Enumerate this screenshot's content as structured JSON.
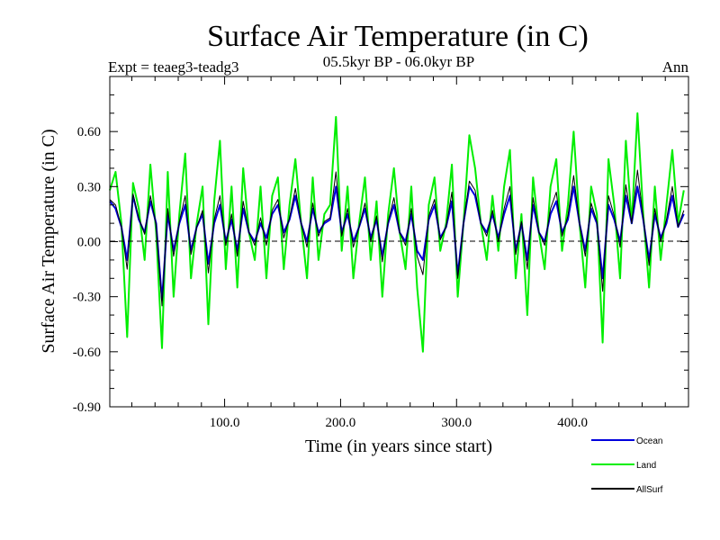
{
  "chart_data": {
    "type": "line",
    "title": "Surface Air Temperature (in C)",
    "subtitle": "05.5kyr BP - 06.0kyr BP",
    "expt_label": "Expt = teaeg3-teadg3",
    "season_label": "Ann",
    "xlabel": "Time (in years since start)",
    "ylabel": "Surface Air Temperature (in C)",
    "xlim": [
      1,
      500
    ],
    "ylim": [
      -0.9,
      0.9
    ],
    "x_ticks": [
      100,
      200,
      300,
      400
    ],
    "x_tick_labels": [
      "100.0",
      "200.0",
      "300.0",
      "400.0"
    ],
    "y_ticks": [
      -0.9,
      -0.6,
      -0.3,
      0.0,
      0.3,
      0.6
    ],
    "y_tick_labels": [
      "-0.90",
      "-0.60",
      "-0.30",
      "0.00",
      "0.30",
      "0.60"
    ],
    "zero_line": true,
    "series": [
      {
        "name": "Land",
        "color": "#00ee00",
        "x": [
          1,
          6,
          11,
          16,
          21,
          26,
          31,
          36,
          41,
          46,
          51,
          56,
          61,
          66,
          71,
          76,
          81,
          86,
          91,
          96,
          101,
          106,
          111,
          116,
          121,
          126,
          131,
          136,
          141,
          146,
          151,
          156,
          161,
          166,
          171,
          176,
          181,
          186,
          191,
          196,
          201,
          206,
          211,
          216,
          221,
          226,
          231,
          236,
          241,
          246,
          251,
          256,
          261,
          266,
          271,
          276,
          281,
          286,
          291,
          296,
          301,
          306,
          311,
          316,
          321,
          326,
          331,
          336,
          341,
          346,
          351,
          356,
          361,
          366,
          371,
          376,
          381,
          386,
          391,
          396,
          401,
          406,
          411,
          416,
          421,
          426,
          431,
          436,
          441,
          446,
          451,
          456,
          461,
          466,
          471,
          476,
          481,
          486,
          491,
          496
        ],
        "values": [
          0.28,
          0.38,
          0.1,
          -0.52,
          0.32,
          0.18,
          -0.1,
          0.42,
          0.05,
          -0.58,
          0.38,
          -0.3,
          0.15,
          0.48,
          -0.2,
          0.1,
          0.3,
          -0.45,
          0.22,
          0.55,
          -0.15,
          0.3,
          -0.25,
          0.4,
          0.05,
          -0.1,
          0.3,
          -0.2,
          0.25,
          0.35,
          -0.15,
          0.2,
          0.45,
          0.1,
          -0.2,
          0.35,
          -0.1,
          0.15,
          0.2,
          0.68,
          -0.05,
          0.3,
          -0.2,
          0.1,
          0.35,
          -0.1,
          0.22,
          -0.3,
          0.15,
          0.4,
          0.05,
          -0.15,
          0.3,
          -0.25,
          -0.6,
          0.2,
          0.35,
          -0.05,
          0.1,
          0.42,
          -0.3,
          0.1,
          0.58,
          0.4,
          0.1,
          -0.1,
          0.25,
          -0.05,
          0.3,
          0.5,
          -0.2,
          0.15,
          -0.4,
          0.35,
          0.05,
          -0.15,
          0.3,
          0.45,
          -0.05,
          0.2,
          0.6,
          0.1,
          -0.25,
          0.3,
          0.15,
          -0.55,
          0.45,
          0.2,
          -0.2,
          0.55,
          0.1,
          0.7,
          0.15,
          -0.25,
          0.3,
          -0.1,
          0.2,
          0.5,
          0.1,
          0.28
        ]
      },
      {
        "name": "Ocean",
        "color": "#0000dd",
        "x": [
          1,
          6,
          11,
          16,
          21,
          26,
          31,
          36,
          41,
          46,
          51,
          56,
          61,
          66,
          71,
          76,
          81,
          86,
          91,
          96,
          101,
          106,
          111,
          116,
          121,
          126,
          131,
          136,
          141,
          146,
          151,
          156,
          161,
          166,
          171,
          176,
          181,
          186,
          191,
          196,
          201,
          206,
          211,
          216,
          221,
          226,
          231,
          236,
          241,
          246,
          251,
          256,
          261,
          266,
          271,
          276,
          281,
          286,
          291,
          296,
          301,
          306,
          311,
          316,
          321,
          326,
          331,
          336,
          341,
          346,
          351,
          356,
          361,
          366,
          371,
          376,
          381,
          386,
          391,
          396,
          401,
          406,
          411,
          416,
          421,
          426,
          431,
          436,
          441,
          446,
          451,
          456,
          461,
          466,
          471,
          476,
          481,
          486,
          491,
          496
        ],
        "values": [
          0.22,
          0.18,
          0.08,
          -0.1,
          0.25,
          0.12,
          0.05,
          0.22,
          0.1,
          -0.32,
          0.15,
          -0.05,
          0.1,
          0.2,
          -0.05,
          0.08,
          0.15,
          -0.12,
          0.1,
          0.2,
          0.0,
          0.12,
          -0.05,
          0.18,
          0.05,
          0.0,
          0.1,
          0.02,
          0.15,
          0.2,
          0.05,
          0.12,
          0.25,
          0.1,
          0.0,
          0.18,
          0.05,
          0.1,
          0.12,
          0.3,
          0.05,
          0.15,
          0.0,
          0.08,
          0.18,
          0.02,
          0.12,
          -0.08,
          0.1,
          0.2,
          0.05,
          0.0,
          0.15,
          -0.05,
          -0.1,
          0.12,
          0.2,
          0.02,
          0.08,
          0.22,
          -0.18,
          0.1,
          0.3,
          0.25,
          0.1,
          0.05,
          0.15,
          0.02,
          0.15,
          0.25,
          -0.05,
          0.1,
          -0.1,
          0.2,
          0.05,
          0.0,
          0.15,
          0.22,
          0.05,
          0.12,
          0.3,
          0.1,
          -0.05,
          0.18,
          0.1,
          -0.2,
          0.2,
          0.12,
          0.0,
          0.25,
          0.1,
          0.3,
          0.12,
          -0.1,
          0.15,
          0.02,
          0.1,
          0.25,
          0.08,
          0.15
        ]
      },
      {
        "name": "AllSurf",
        "color": "#000000",
        "x": [
          1,
          6,
          11,
          16,
          21,
          26,
          31,
          36,
          41,
          46,
          51,
          56,
          61,
          66,
          71,
          76,
          81,
          86,
          91,
          96,
          101,
          106,
          111,
          116,
          121,
          126,
          131,
          136,
          141,
          146,
          151,
          156,
          161,
          166,
          171,
          176,
          181,
          186,
          191,
          196,
          201,
          206,
          211,
          216,
          221,
          226,
          231,
          236,
          241,
          246,
          251,
          256,
          261,
          266,
          271,
          276,
          281,
          286,
          291,
          296,
          301,
          306,
          311,
          316,
          321,
          326,
          331,
          336,
          341,
          346,
          351,
          356,
          361,
          366,
          371,
          376,
          381,
          386,
          391,
          396,
          401,
          406,
          411,
          416,
          421,
          426,
          431,
          436,
          441,
          446,
          451,
          456,
          461,
          466,
          471,
          476,
          481,
          486,
          491,
          496
        ],
        "values": [
          0.23,
          0.2,
          0.08,
          -0.15,
          0.26,
          0.13,
          0.04,
          0.25,
          0.09,
          -0.35,
          0.18,
          -0.08,
          0.11,
          0.25,
          -0.07,
          0.08,
          0.17,
          -0.17,
          0.12,
          0.25,
          -0.02,
          0.15,
          -0.08,
          0.22,
          0.05,
          -0.02,
          0.13,
          -0.02,
          0.17,
          0.23,
          0.02,
          0.13,
          0.29,
          0.1,
          -0.03,
          0.21,
          0.03,
          0.11,
          0.13,
          0.38,
          0.03,
          0.18,
          -0.03,
          0.08,
          0.21,
          0.0,
          0.14,
          -0.11,
          0.11,
          0.24,
          0.05,
          -0.02,
          0.18,
          -0.08,
          -0.18,
          0.14,
          0.23,
          0.01,
          0.08,
          0.27,
          -0.2,
          0.1,
          0.33,
          0.28,
          0.1,
          0.03,
          0.17,
          0.0,
          0.18,
          0.3,
          -0.07,
          0.11,
          -0.15,
          0.24,
          0.05,
          -0.02,
          0.18,
          0.27,
          0.03,
          0.14,
          0.36,
          0.1,
          -0.08,
          0.21,
          0.11,
          -0.27,
          0.25,
          0.14,
          -0.03,
          0.31,
          0.1,
          0.39,
          0.13,
          -0.13,
          0.18,
          0.0,
          0.12,
          0.3,
          0.08,
          0.17
        ]
      }
    ],
    "legend": [
      {
        "name": "Ocean",
        "color": "#0000dd"
      },
      {
        "name": "Land",
        "color": "#00ee00"
      },
      {
        "name": "AllSurf",
        "color": "#000000"
      }
    ]
  }
}
